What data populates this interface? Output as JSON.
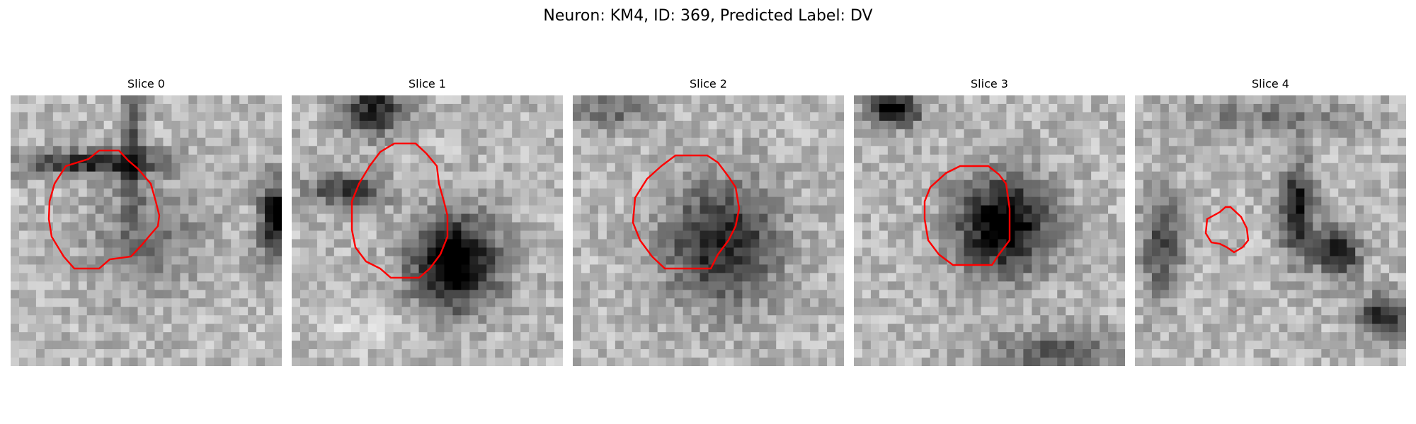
{
  "figure": {
    "title": "Neuron: KM4, ID: 369, Predicted Label: DV"
  },
  "panels": [
    {
      "title": "Slice 0"
    },
    {
      "title": "Slice 1"
    },
    {
      "title": "Slice 2"
    },
    {
      "title": "Slice 3"
    },
    {
      "title": "Slice 4"
    }
  ],
  "colors": {
    "contour": "#ff0000",
    "background": "#ffffff"
  }
}
